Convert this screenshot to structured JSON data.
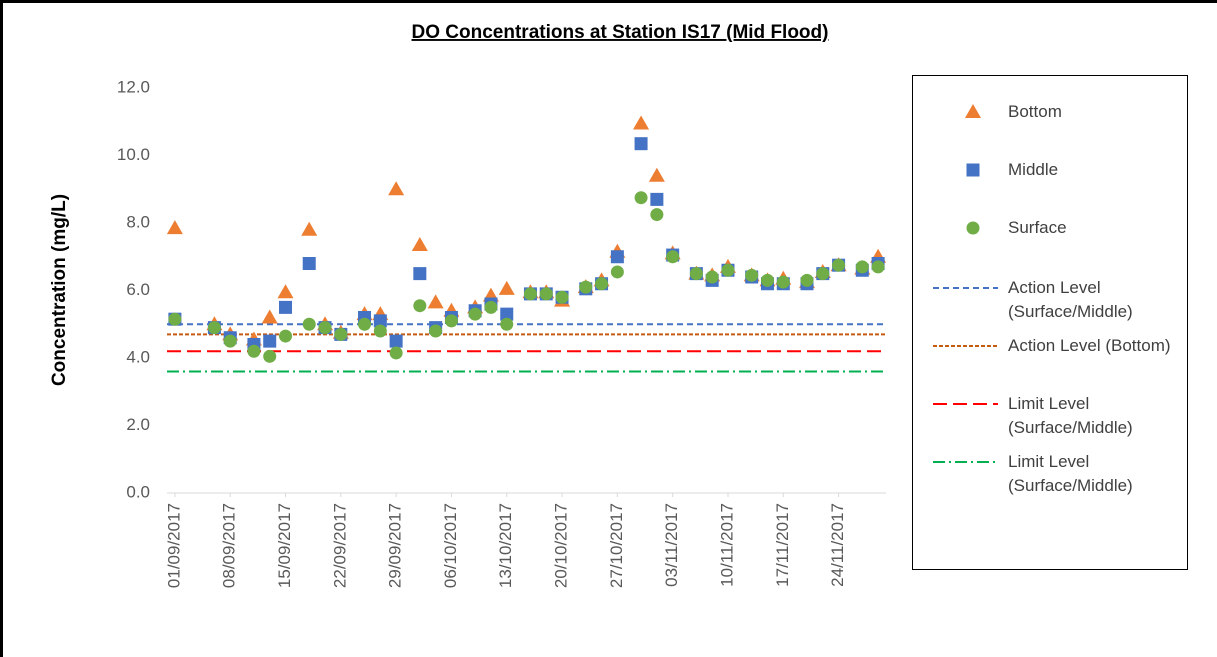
{
  "chart_data": {
    "type": "scatter",
    "title": "DO Concentrations at Station IS17 (Mid Flood)",
    "y_label": "Concentration (mg/L)",
    "x": [
      "01/09/2017",
      "06/09/2017",
      "08/09/2017",
      "11/09/2017",
      "13/09/2017",
      "15/09/2017",
      "18/09/2017",
      "20/09/2017",
      "22/09/2017",
      "25/09/2017",
      "27/09/2017",
      "29/09/2017",
      "02/10/2017",
      "04/10/2017",
      "06/10/2017",
      "09/10/2017",
      "11/10/2017",
      "13/10/2017",
      "16/10/2017",
      "18/10/2017",
      "20/10/2017",
      "23/10/2017",
      "25/10/2017",
      "27/10/2017",
      "30/10/2017",
      "01/11/2017",
      "03/11/2017",
      "06/11/2017",
      "08/11/2017",
      "10/11/2017",
      "13/11/2017",
      "15/11/2017",
      "17/11/2017",
      "20/11/2017",
      "22/11/2017",
      "24/11/2017",
      "27/11/2017",
      "29/11/2017"
    ],
    "series": [
      {
        "name": "Bottom",
        "color": "#ED7D31",
        "marker": "triangle",
        "values": [
          7.85,
          5.0,
          4.7,
          4.55,
          5.2,
          5.95,
          7.8,
          5.0,
          4.75,
          5.3,
          5.3,
          9.0,
          7.35,
          5.65,
          5.4,
          5.5,
          5.85,
          6.05,
          5.95,
          5.95,
          5.7,
          6.1,
          6.3,
          7.15,
          10.95,
          9.4,
          7.1,
          6.5,
          6.45,
          6.7,
          6.45,
          6.3,
          6.35,
          6.25,
          6.55,
          6.75,
          6.65,
          7.0
        ]
      },
      {
        "name": "Middle",
        "color": "#4472C4",
        "marker": "square",
        "values": [
          5.15,
          4.9,
          4.6,
          4.4,
          4.5,
          5.5,
          6.8,
          4.9,
          4.7,
          5.2,
          5.1,
          4.5,
          6.5,
          4.9,
          5.2,
          5.4,
          5.6,
          5.3,
          5.9,
          5.9,
          5.8,
          6.05,
          6.2,
          7.0,
          10.35,
          8.7,
          7.05,
          6.5,
          6.3,
          6.6,
          6.4,
          6.2,
          6.2,
          6.2,
          6.5,
          6.75,
          6.6,
          6.8
        ]
      },
      {
        "name": "Surface",
        "color": "#70AD47",
        "marker": "circle",
        "values": [
          5.15,
          4.9,
          4.5,
          4.2,
          4.05,
          4.65,
          5.0,
          4.9,
          4.7,
          5.0,
          4.8,
          4.15,
          5.55,
          4.8,
          5.1,
          5.3,
          5.5,
          5.0,
          5.9,
          5.9,
          5.8,
          6.1,
          6.2,
          6.55,
          8.75,
          8.25,
          7.0,
          6.5,
          6.4,
          6.6,
          6.45,
          6.3,
          6.25,
          6.3,
          6.5,
          6.75,
          6.7,
          6.7
        ]
      }
    ],
    "reference_lines": [
      {
        "name": "Action Level (Surface/Middle)",
        "value": 5.0,
        "color": "#4472C4",
        "dash": "6,4"
      },
      {
        "name": "Action Level (Bottom)",
        "value": 4.7,
        "color": "#C55A11",
        "dash": "4,2"
      },
      {
        "name": "Limit Level (Surface/Middle)",
        "value": 4.2,
        "color": "#FF0000",
        "dash": "14,6"
      },
      {
        "name": "Limit Level (Surface/Middle)",
        "value": 3.6,
        "color": "#00B050",
        "dash": "12,4,2,4"
      }
    ],
    "xlim": [
      "31/08/2017",
      "30/11/2017"
    ],
    "xticks": [
      "01/09/2017",
      "08/09/2017",
      "15/09/2017",
      "22/09/2017",
      "29/09/2017",
      "06/10/2017",
      "13/10/2017",
      "20/10/2017",
      "27/10/2017",
      "03/11/2017",
      "10/11/2017",
      "17/11/2017",
      "24/11/2017"
    ],
    "ylim": [
      0,
      12
    ],
    "yticks": [
      {
        "value": 0,
        "label": "0.0"
      },
      {
        "value": 2,
        "label": "2.0"
      },
      {
        "value": 4,
        "label": "4.0"
      },
      {
        "value": 6,
        "label": "6.0"
      },
      {
        "value": 8,
        "label": "8.0"
      },
      {
        "value": 10,
        "label": "10.0"
      },
      {
        "value": 12,
        "label": "12.0"
      }
    ],
    "grid": false,
    "legend": "right"
  }
}
